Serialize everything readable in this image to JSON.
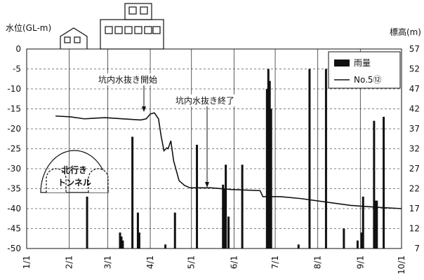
{
  "chart_data": {
    "type": "combo",
    "y_label": "水位(GL-m)",
    "y2_label": "標高(m)",
    "xlim": [
      0,
      273
    ],
    "xticks": [
      {
        "value": 0,
        "label": "1/1"
      },
      {
        "value": 31,
        "label": "2/1"
      },
      {
        "value": 59,
        "label": "3/1"
      },
      {
        "value": 90,
        "label": "4/1"
      },
      {
        "value": 120,
        "label": "5/1"
      },
      {
        "value": 151,
        "label": "6/1"
      },
      {
        "value": 181,
        "label": "7/1"
      },
      {
        "value": 212,
        "label": "8/1"
      },
      {
        "value": 243,
        "label": "9/1"
      },
      {
        "value": 273,
        "label": "10/1"
      }
    ],
    "ylim": [
      -50,
      0
    ],
    "yticks": [
      0,
      -5,
      -10,
      -15,
      -20,
      -25,
      -30,
      -35,
      -40,
      -45,
      -50
    ],
    "y2lim": [
      7,
      57
    ],
    "y2ticks": [
      57,
      52,
      47,
      42,
      37,
      32,
      27,
      22,
      17,
      12,
      7
    ],
    "grid": true,
    "legend": "upper right",
    "series": [
      {
        "name": "雨量",
        "type": "bar",
        "axis": "y2",
        "color": "#111111",
        "x": [
          44,
          68,
          69,
          70,
          77,
          81,
          82,
          101,
          108,
          124,
          143,
          144,
          145,
          147,
          157,
          175,
          176,
          177,
          178,
          198,
          206,
          218,
          231,
          241,
          244,
          245,
          253,
          254,
          255,
          260
        ],
        "values": [
          20,
          11,
          10,
          9,
          35,
          16,
          11,
          8,
          16,
          33,
          23,
          22,
          28,
          15,
          28,
          47,
          52,
          49,
          42,
          8,
          52,
          52,
          12,
          9,
          11,
          20,
          39,
          19,
          19,
          40
        ]
      },
      {
        "name": "No.5⑫",
        "type": "line",
        "color": "#111111",
        "x": [
          21,
          32,
          42,
          57,
          83,
          87,
          90,
          93,
          96,
          98,
          100,
          102,
          103,
          105,
          107,
          111,
          115,
          119,
          134,
          149,
          170,
          172,
          185,
          200,
          221,
          236,
          257,
          273
        ],
        "values": [
          -16.8,
          -17,
          -17.5,
          -17.2,
          -17.8,
          -17.5,
          -16.3,
          -16,
          -17.5,
          -22,
          -25.5,
          -24.8,
          -25,
          -23,
          -28,
          -33,
          -34.2,
          -34.8,
          -34.8,
          -35.2,
          -35.5,
          -37,
          -37,
          -37.5,
          -38.5,
          -39.2,
          -39.7,
          -40
        ]
      }
    ],
    "annotations": [
      "坑内水抜き開始",
      "坑内水抜き終了"
    ],
    "tunnel_label": [
      "北行き",
      "トンネル"
    ]
  }
}
